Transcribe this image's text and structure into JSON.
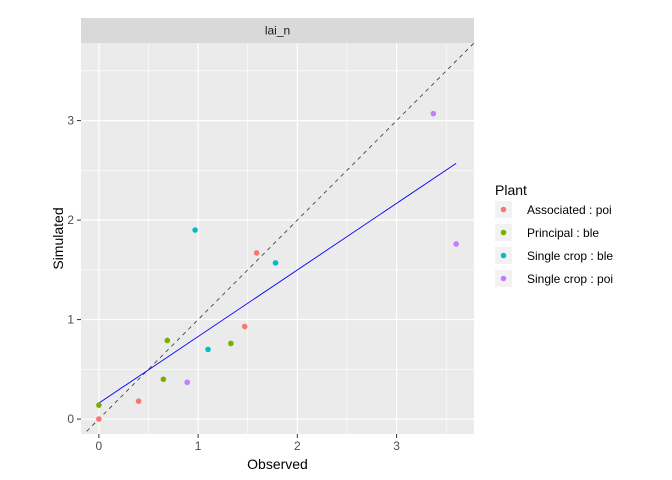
{
  "chart_data": {
    "type": "scatter",
    "facet_label": "lai_n",
    "xlabel": "Observed",
    "ylabel": "Simulated",
    "xlim": [
      -0.18,
      3.78
    ],
    "ylim": [
      -0.15,
      3.78
    ],
    "xticks": [
      0,
      1,
      2,
      3
    ],
    "yticks": [
      0,
      1,
      2,
      3
    ],
    "grid": true,
    "legend": {
      "title": "Plant",
      "position": "right"
    },
    "series": [
      {
        "name": "Associated : poi",
        "color": "#F8766D",
        "points": [
          [
            0.0,
            0.0
          ],
          [
            0.4,
            0.18
          ],
          [
            1.47,
            0.93
          ],
          [
            1.59,
            1.67
          ]
        ]
      },
      {
        "name": "Principal : ble",
        "color": "#7CAE00",
        "points": [
          [
            0.0,
            0.14
          ],
          [
            0.65,
            0.4
          ],
          [
            0.69,
            0.79
          ],
          [
            1.33,
            0.76
          ]
        ]
      },
      {
        "name": "Single crop : ble",
        "color": "#00BFC4",
        "points": [
          [
            0.97,
            1.9
          ],
          [
            1.1,
            0.7
          ],
          [
            1.78,
            1.57
          ]
        ]
      },
      {
        "name": "Single crop : poi",
        "color": "#C77CFF",
        "points": [
          [
            0.89,
            0.37
          ],
          [
            3.37,
            3.07
          ],
          [
            3.6,
            1.76
          ]
        ]
      }
    ],
    "reference_line": {
      "type": "identity",
      "style": "dashed",
      "color": "#333333"
    },
    "fit_line": {
      "color": "#0000FF",
      "x": [
        0.0,
        3.6
      ],
      "y": [
        0.16,
        2.57
      ]
    }
  }
}
